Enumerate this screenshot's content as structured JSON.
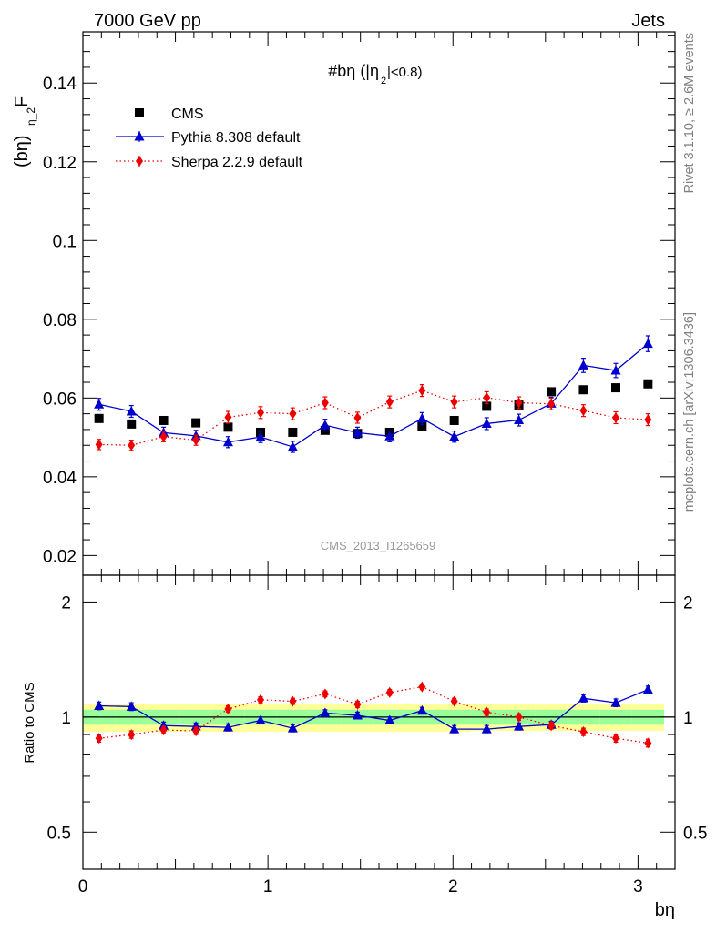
{
  "header": {
    "left": "7000 GeV pp",
    "right": "Jets",
    "side_top": "Rivet 3.1.10, ≥ 2.6M events",
    "side_bottom": "mcplots.cern.ch [arXiv:1306.3436]",
    "watermark": "CMS_2013_I1265659"
  },
  "chart_data": [
    {
      "type": "scatter",
      "title": "#bη (|η",
      "title_sub": "2",
      "title_end": "|<0.8)",
      "ylabel_main": "F",
      "ylabel_sub": "η_2",
      "ylabel_end": "(bη)",
      "xlim": [
        0,
        3.2
      ],
      "ylim": [
        0.015,
        0.153
      ],
      "yticks": [
        0.02,
        0.04,
        0.06,
        0.08,
        0.1,
        0.12,
        0.14
      ],
      "ytick_labels": [
        "0.02",
        "0.04",
        "0.06",
        "0.08",
        "0.1",
        "0.12",
        "0.14"
      ],
      "legend_position": "top-left",
      "x": [
        0.087,
        0.262,
        0.436,
        0.611,
        0.785,
        0.96,
        1.134,
        1.309,
        1.484,
        1.658,
        1.833,
        2.007,
        2.182,
        2.356,
        2.531,
        2.705,
        2.88,
        3.054
      ],
      "series": [
        {
          "name": "CMS",
          "color": "#000000",
          "marker": "square",
          "values": [
            0.0548,
            0.0534,
            0.0543,
            0.0537,
            0.0526,
            0.0513,
            0.0513,
            0.0518,
            0.051,
            0.0513,
            0.0528,
            0.0543,
            0.0579,
            0.0582,
            0.0616,
            0.0621,
            0.0626,
            0.0636
          ]
        },
        {
          "name": "Pythia 8.308 default",
          "color": "#0000cc",
          "marker": "triangle",
          "line": "solid",
          "values": [
            0.0584,
            0.0566,
            0.0512,
            0.0504,
            0.0488,
            0.0501,
            0.0476,
            0.0531,
            0.0512,
            0.0503,
            0.0548,
            0.0502,
            0.0535,
            0.0544,
            0.0586,
            0.0683,
            0.067,
            0.0738
          ],
          "errors": [
            0.0015,
            0.0015,
            0.0014,
            0.0014,
            0.0014,
            0.0014,
            0.0014,
            0.0015,
            0.0014,
            0.0014,
            0.0015,
            0.0014,
            0.0015,
            0.0015,
            0.0016,
            0.0018,
            0.0018,
            0.002
          ]
        },
        {
          "name": "Sherpa 2.2.9 default",
          "color": "#ee0000",
          "marker": "diamond",
          "line": "dotted",
          "values": [
            0.0482,
            0.048,
            0.0502,
            0.0493,
            0.0551,
            0.0563,
            0.056,
            0.0588,
            0.055,
            0.059,
            0.0619,
            0.059,
            0.0601,
            0.0588,
            0.0585,
            0.0568,
            0.055,
            0.0545
          ],
          "errors": [
            0.0013,
            0.0013,
            0.0013,
            0.0013,
            0.0015,
            0.0015,
            0.0015,
            0.0015,
            0.0014,
            0.0015,
            0.0015,
            0.0015,
            0.0015,
            0.0015,
            0.0015,
            0.0015,
            0.0015,
            0.0015
          ]
        }
      ]
    },
    {
      "type": "line",
      "ylabel": "Ratio to CMS",
      "xlabel": "bη",
      "xlim": [
        0,
        3.2
      ],
      "xticks": [
        0,
        1,
        2,
        3
      ],
      "xtick_labels": [
        "0",
        "1",
        "2",
        "3"
      ],
      "ylim": [
        0.4,
        2.35
      ],
      "y_scale": "log",
      "yticks": [
        0.5,
        1,
        2
      ],
      "ytick_labels": [
        "0.5",
        "1",
        "2"
      ],
      "band_inner_color": "#99ff99",
      "band_outer_color": "#ffff99",
      "band_inner": [
        0.045,
        0.045,
        0.045,
        0.045,
        0.045,
        0.045,
        0.045,
        0.045,
        0.045,
        0.045,
        0.045,
        0.045,
        0.045,
        0.045,
        0.045,
        0.045,
        0.045,
        0.045
      ],
      "band_outer": [
        0.085,
        0.085,
        0.085,
        0.085,
        0.085,
        0.085,
        0.085,
        0.085,
        0.085,
        0.085,
        0.085,
        0.085,
        0.08,
        0.08,
        0.08,
        0.08,
        0.08,
        0.08
      ],
      "series": [
        {
          "name": "Pythia 8.308 default",
          "color": "#0000cc",
          "values": [
            1.07,
            1.065,
            0.95,
            0.945,
            0.94,
            0.98,
            0.935,
            1.025,
            1.01,
            0.98,
            1.04,
            0.93,
            0.93,
            0.945,
            0.955,
            1.12,
            1.09,
            1.18
          ],
          "errors": [
            0.025,
            0.025,
            0.02,
            0.02,
            0.02,
            0.02,
            0.02,
            0.02,
            0.02,
            0.02,
            0.02,
            0.02,
            0.02,
            0.02,
            0.02,
            0.025,
            0.025,
            0.025
          ]
        },
        {
          "name": "Sherpa 2.2.9 default",
          "color": "#ee0000",
          "values": [
            0.88,
            0.9,
            0.925,
            0.92,
            1.05,
            1.11,
            1.1,
            1.15,
            1.08,
            1.16,
            1.2,
            1.1,
            1.03,
            1.0,
            0.95,
            0.915,
            0.88,
            0.855
          ],
          "errors": [
            0.02,
            0.02,
            0.02,
            0.02,
            0.02,
            0.02,
            0.02,
            0.02,
            0.02,
            0.02,
            0.02,
            0.02,
            0.02,
            0.02,
            0.02,
            0.02,
            0.02,
            0.02
          ]
        }
      ]
    }
  ]
}
